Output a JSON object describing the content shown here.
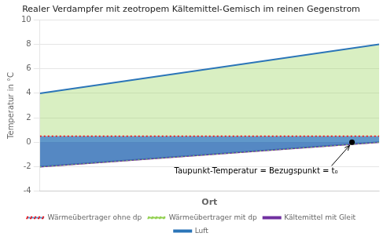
{
  "chart_data": {
    "type": "line",
    "title": "Realer Verdampfer mit zeotropem Kältemittel-Gemisch im reinen Gegenstrom",
    "xlabel": "Ort",
    "ylabel": "Temperatur in °C",
    "x": [
      0.0,
      1.0
    ],
    "xlim": [
      0,
      1
    ],
    "ylim": [
      -4,
      10
    ],
    "yticks": [
      -4,
      -2,
      0,
      2,
      4,
      6,
      8,
      10
    ],
    "tick_labels": "y",
    "grid": true,
    "legend": "bottom",
    "series": [
      {
        "name": "Wärmeübertrager ohne dp",
        "color": "#FF0000",
        "line_style": "dotted",
        "values": [
          0.5,
          0.5
        ]
      },
      {
        "name": "Wärmeübertrager mit dp",
        "color": "#92D050",
        "line_style": "dotted",
        "values": [
          -2.0,
          0.0
        ]
      },
      {
        "name": "Kältemittel mit Gleit",
        "color": "#7030A0",
        "line_style": "solid",
        "values": [
          -2.0,
          0.0
        ]
      },
      {
        "name": "Luft",
        "color": "#2B75B8",
        "line_style": "solid",
        "values": [
          4.0,
          8.0
        ]
      }
    ],
    "annotations": [
      {
        "text": "Taupunkt-Temperatur = Bezugspunkt = t₀",
        "x": 0.92,
        "y": 0.0
      }
    ]
  }
}
